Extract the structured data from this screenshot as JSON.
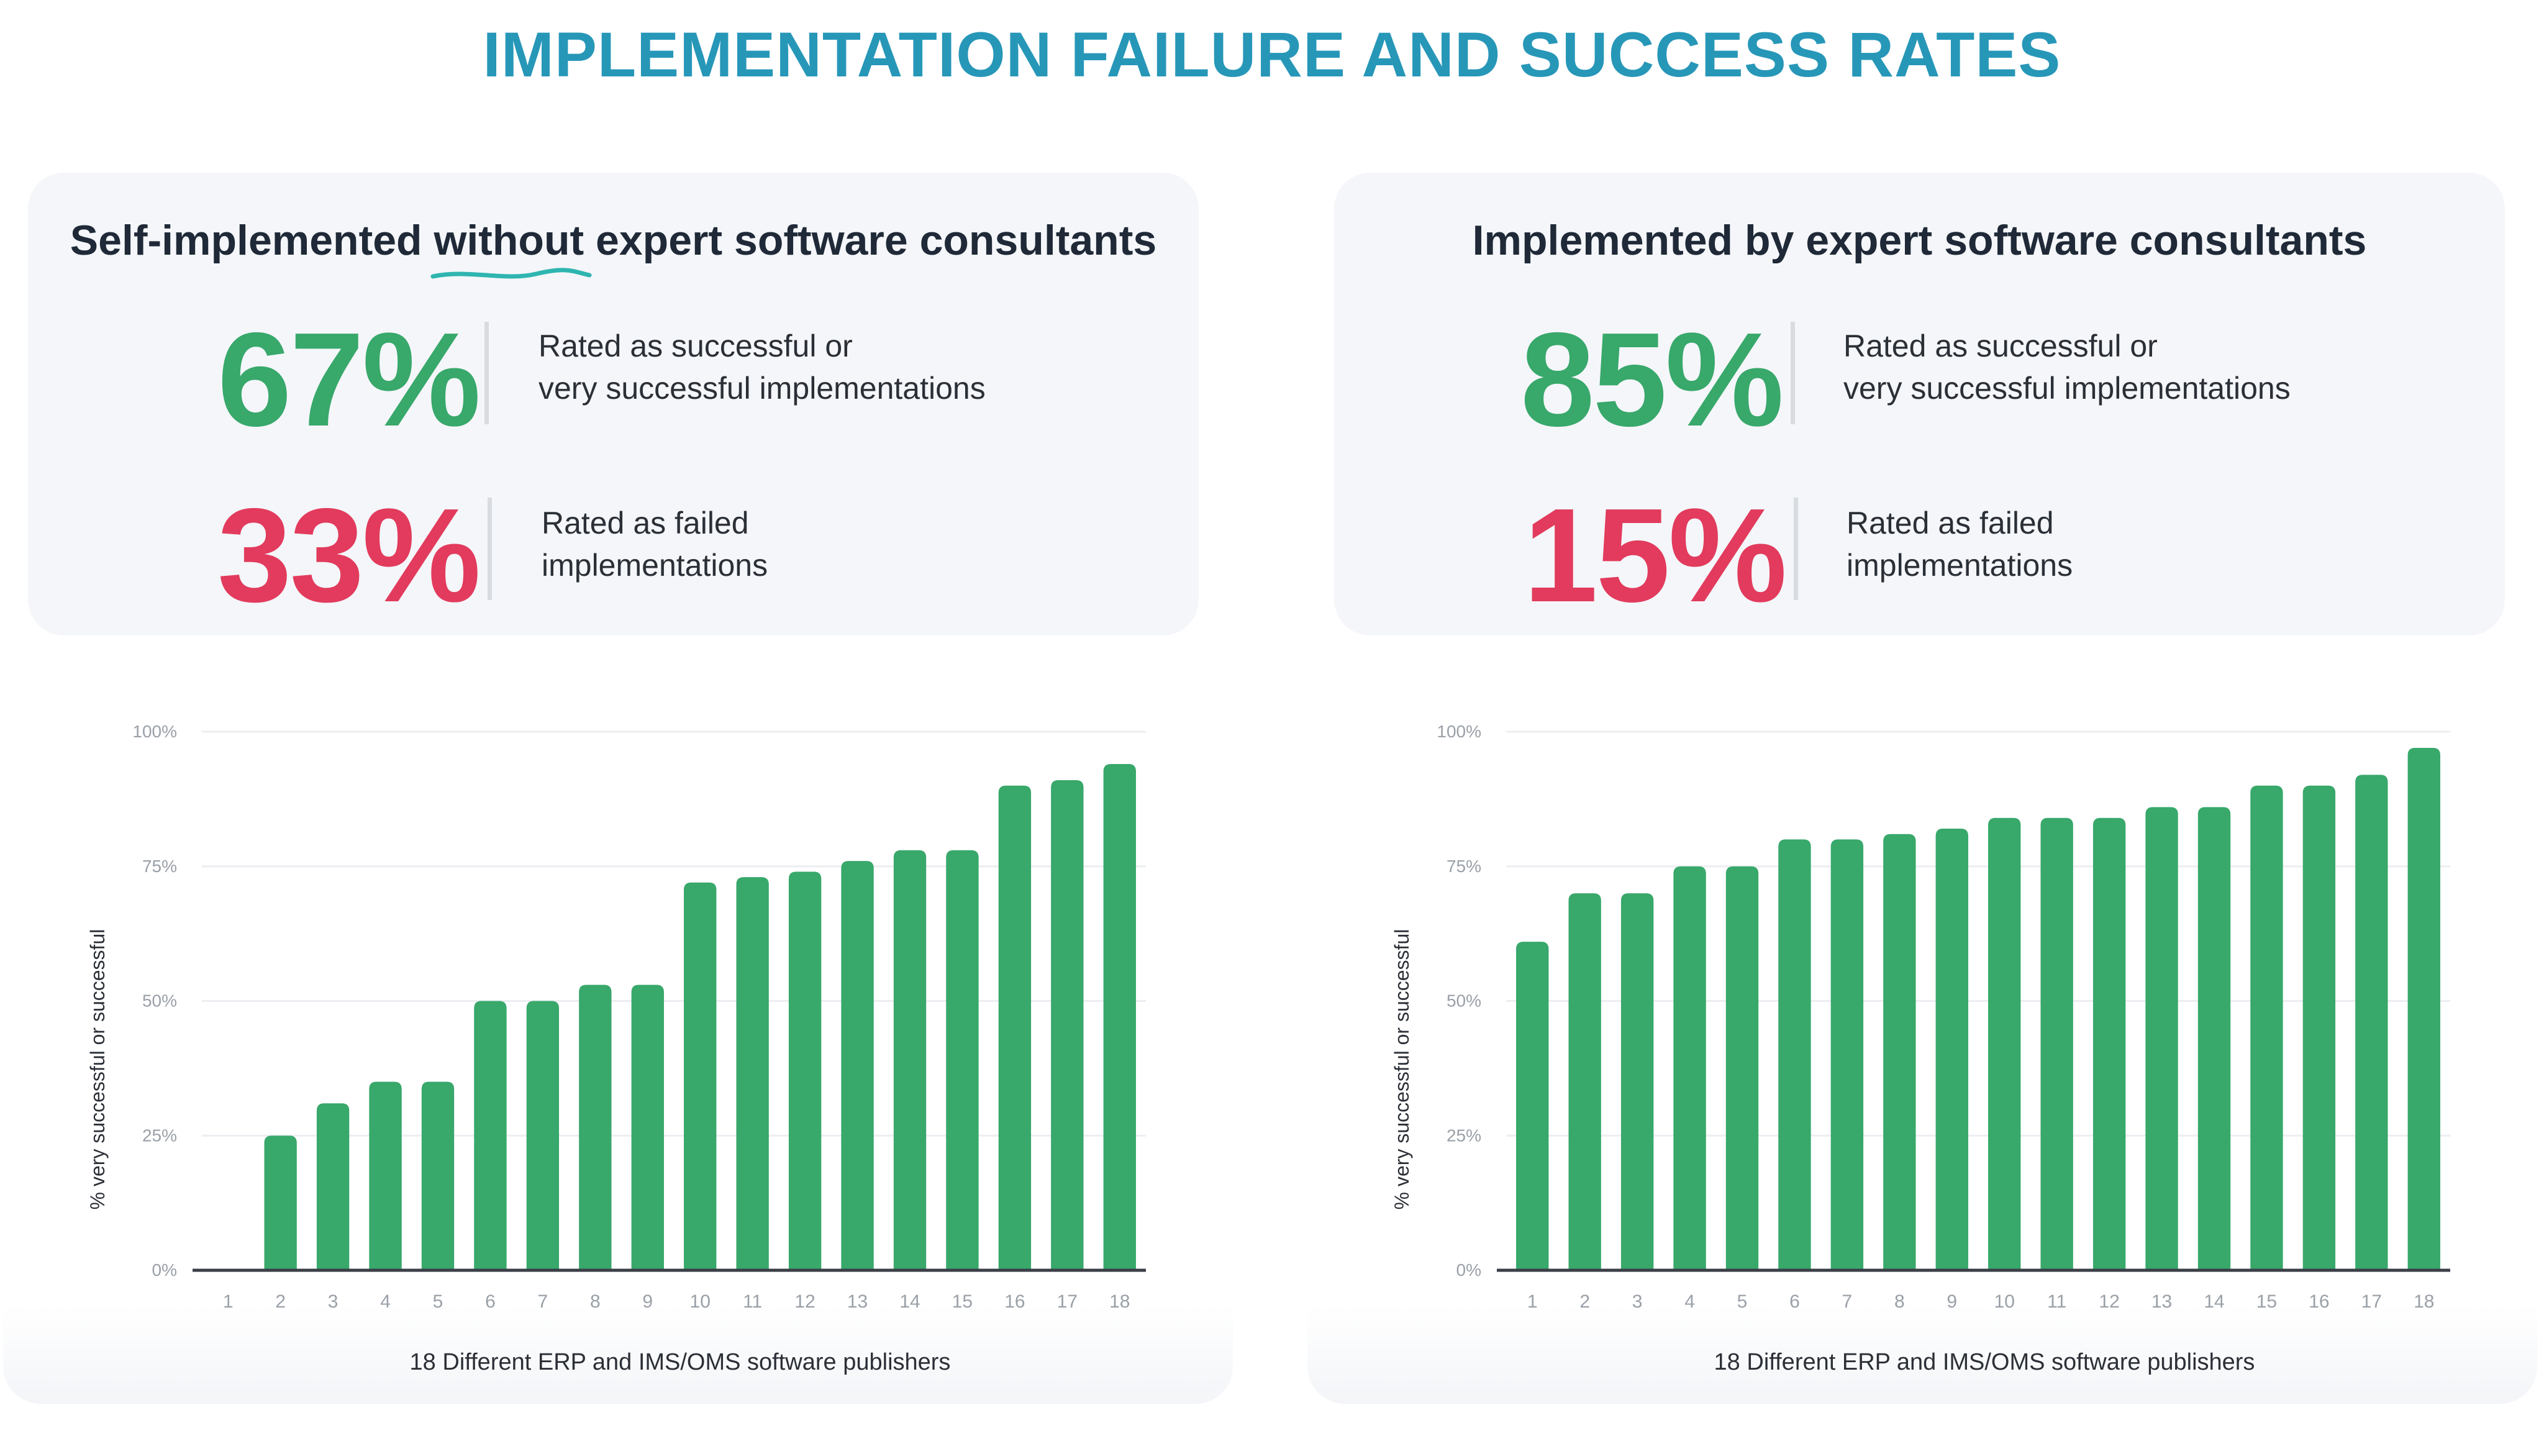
{
  "title": "IMPLEMENTATION FAILURE AND SUCCESS RATES",
  "colors": {
    "title": "#2797b8",
    "success": "#38a86b",
    "failure": "#e23b5d",
    "bar": "#38a86b",
    "text": "#1f2937"
  },
  "panels": [
    {
      "heading_before": "Self-implemented ",
      "heading_emphasis": "without",
      "heading_after": " expert software consultants",
      "success_value": "67%",
      "success_label_line1": "Rated as successful or",
      "success_label_line2": "very successful implementations",
      "failed_value": "33%",
      "failed_label_line1": "Rated as failed",
      "failed_label_line2": "implementations"
    },
    {
      "heading": "Implemented by expert software consultants",
      "success_value": "85%",
      "success_label_line1": "Rated as successful or",
      "success_label_line2": "very successful implementations",
      "failed_value": "15%",
      "failed_label_line1": "Rated as failed",
      "failed_label_line2": "implementations"
    }
  ],
  "chart_data": [
    {
      "type": "bar",
      "title": "Self-implemented without expert software consultants",
      "categories": [
        "1",
        "2",
        "3",
        "4",
        "5",
        "6",
        "7",
        "8",
        "9",
        "10",
        "11",
        "12",
        "13",
        "14",
        "15",
        "16",
        "17",
        "18"
      ],
      "values": [
        0,
        25,
        31,
        35,
        35,
        50,
        50,
        53,
        53,
        72,
        73,
        74,
        76,
        78,
        78,
        90,
        91,
        94
      ],
      "xlabel": "18 Different ERP and IMS/OMS software publishers",
      "ylabel": "% very successful or successful",
      "yticks": [
        "0%",
        "25%",
        "50%",
        "75%",
        "100%"
      ],
      "ylim": [
        0,
        100
      ]
    },
    {
      "type": "bar",
      "title": "Implemented by expert software consultants",
      "categories": [
        "1",
        "2",
        "3",
        "4",
        "5",
        "6",
        "7",
        "8",
        "9",
        "10",
        "11",
        "12",
        "13",
        "14",
        "15",
        "16",
        "17",
        "18"
      ],
      "values": [
        61,
        70,
        70,
        75,
        75,
        80,
        80,
        81,
        82,
        84,
        84,
        84,
        86,
        86,
        90,
        90,
        92,
        97
      ],
      "xlabel": "18 Different ERP and IMS/OMS software publishers",
      "ylabel": "% very successful or successful",
      "yticks": [
        "0%",
        "25%",
        "50%",
        "75%",
        "100%"
      ],
      "ylim": [
        0,
        100
      ]
    }
  ]
}
